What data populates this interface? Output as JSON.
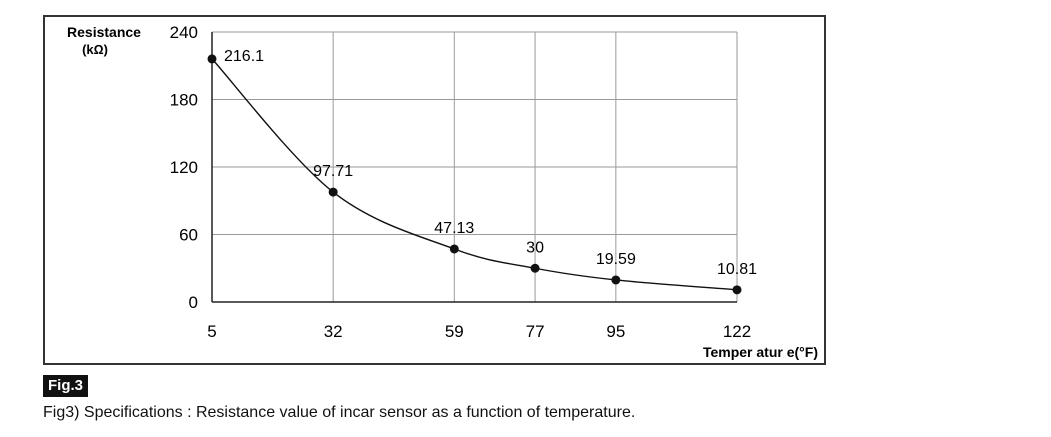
{
  "figure": {
    "badge": "Fig.3",
    "caption": "Fig3) Specifications : Resistance value of incar sensor as a function of temperature."
  },
  "chart_data": {
    "type": "line",
    "ylabel_line1": "Resistance",
    "ylabel_line2": "(kΩ)",
    "xlabel": "Temper atur e(°F)",
    "categories": [
      "5",
      "32",
      "59",
      "77",
      "95",
      "122"
    ],
    "values": [
      216.1,
      97.71,
      47.13,
      30,
      19.59,
      10.81
    ],
    "value_labels": [
      "216.1",
      "97.71",
      "47.13",
      "30",
      "19.59",
      "10.81"
    ],
    "yticks": [
      "0",
      "60",
      "120",
      "180",
      "240"
    ],
    "ylim": [
      0,
      240
    ],
    "grid": true,
    "line_color": "#111111",
    "grid_color": "#9a9a9a"
  }
}
